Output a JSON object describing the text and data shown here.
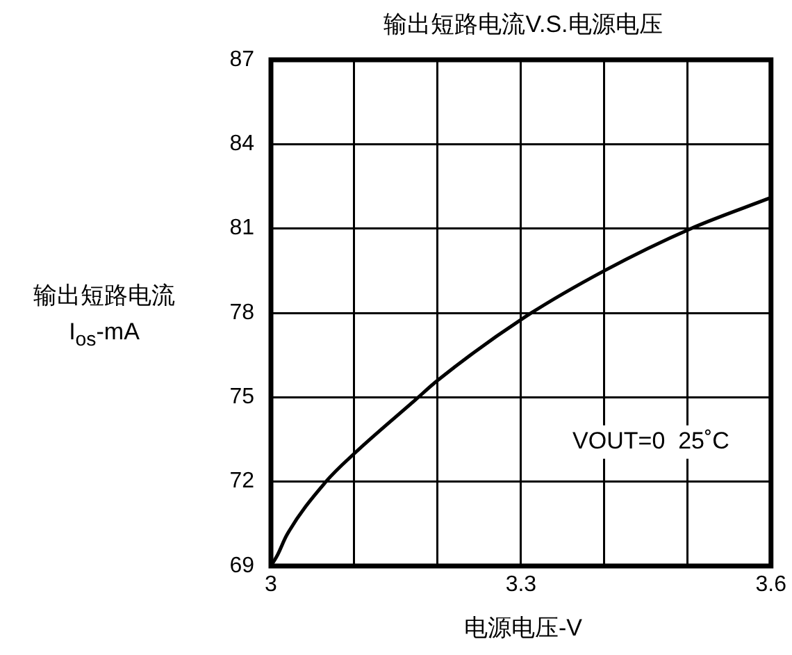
{
  "chart_data": {
    "type": "line",
    "title": "输出短路电流V.S.电源电压",
    "xlabel": "电源电压-V",
    "ylabel": "输出短路电流\nI$_{os}$-mA",
    "x": [
      3,
      3.008,
      3.019,
      3.066,
      3.1,
      3.173,
      3.2,
      3.302,
      3.4,
      3.504,
      3.6
    ],
    "series": [
      {
        "color": "#000000",
        "values": [
          69,
          69.4,
          70.1,
          72.0,
          73.0,
          74.9,
          75.6,
          77.8,
          79.5,
          81.0,
          82.1
        ]
      }
    ],
    "xlim": [
      3,
      3.6
    ],
    "xticks": [
      3,
      {
        "value": 3.1,
        "label": null
      },
      {
        "value": 3.2,
        "label": null
      },
      3.3,
      {
        "value": 3.4,
        "label": null
      },
      {
        "value": 3.5,
        "label": null
      },
      3.6
    ],
    "ylim": [
      69,
      87
    ],
    "yticks": [
      69,
      72,
      75,
      78,
      81,
      84,
      87
    ],
    "annotations": [
      "VOUT=0  25˚C"
    ],
    "grid": true,
    "legend": false,
    "marker": "none",
    "line_style": "solid"
  }
}
